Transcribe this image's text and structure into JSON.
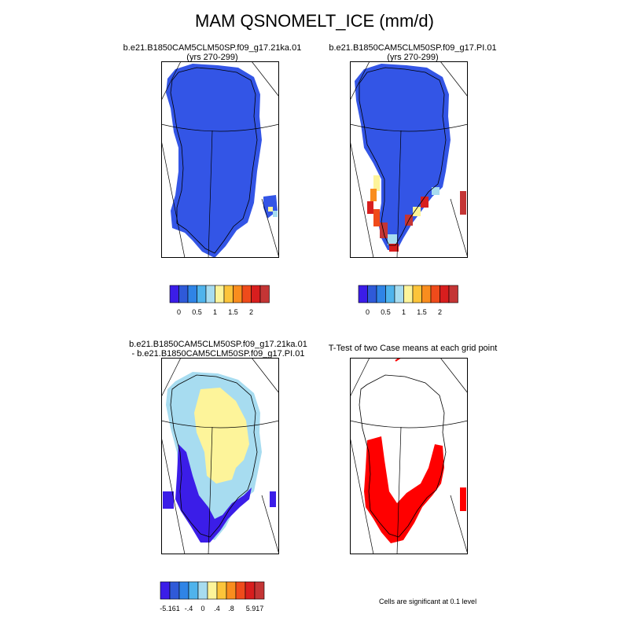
{
  "figure": {
    "title": "MAM QSNOMELT_ICE (mm/d)"
  },
  "panels": [
    {
      "id": "p1",
      "title_line1": "b.e21.B1850CAM5CLM50SP.f09_g17.21ka.01",
      "title_line2": "(yrs 270-299)"
    },
    {
      "id": "p2",
      "title_line1": "b.e21.B1850CAM5CLM50SP.f09_g17.PI.01",
      "title_line2": "(yrs 270-299)"
    },
    {
      "id": "p3",
      "title_line1": "b.e21.B1850CAM5CLM50SP.f09_g17.21ka.01",
      "title_line2": "- b.e21.B1850CAM5CLM50SP.f09_g17.PI.01"
    },
    {
      "id": "p4",
      "title_line1": "T-Test of two Case means at each grid point",
      "title_line2": ""
    }
  ],
  "colorbar_top": {
    "colors": [
      "#3b1de8",
      "#2f5ad8",
      "#2f84e6",
      "#4fb3ec",
      "#a7dcf0",
      "#fdf49a",
      "#fcc43a",
      "#f98d1e",
      "#ef4b1b",
      "#d81e1e",
      "#c43535"
    ],
    "labels": [
      "0",
      "0.5",
      "1",
      "1.5",
      "2"
    ]
  },
  "colorbar_diff": {
    "colors": [
      "#3b1de8",
      "#2f5ad8",
      "#2f84e6",
      "#4fb3ec",
      "#a7dcf0",
      "#fdf49a",
      "#fcc43a",
      "#f98d1e",
      "#ef4b1b",
      "#d81e1e",
      "#c43535"
    ],
    "labels": [
      "-5.161",
      "-.4",
      "0",
      ".4",
      ".8",
      "5.917"
    ]
  },
  "significance_note": "Cells are significant at 0.1 level",
  "colors": {
    "blue_fill": "#3355e6",
    "light_blue": "#a7dcf0",
    "yellow": "#fdf49a",
    "sig_red": "#ff0000"
  }
}
